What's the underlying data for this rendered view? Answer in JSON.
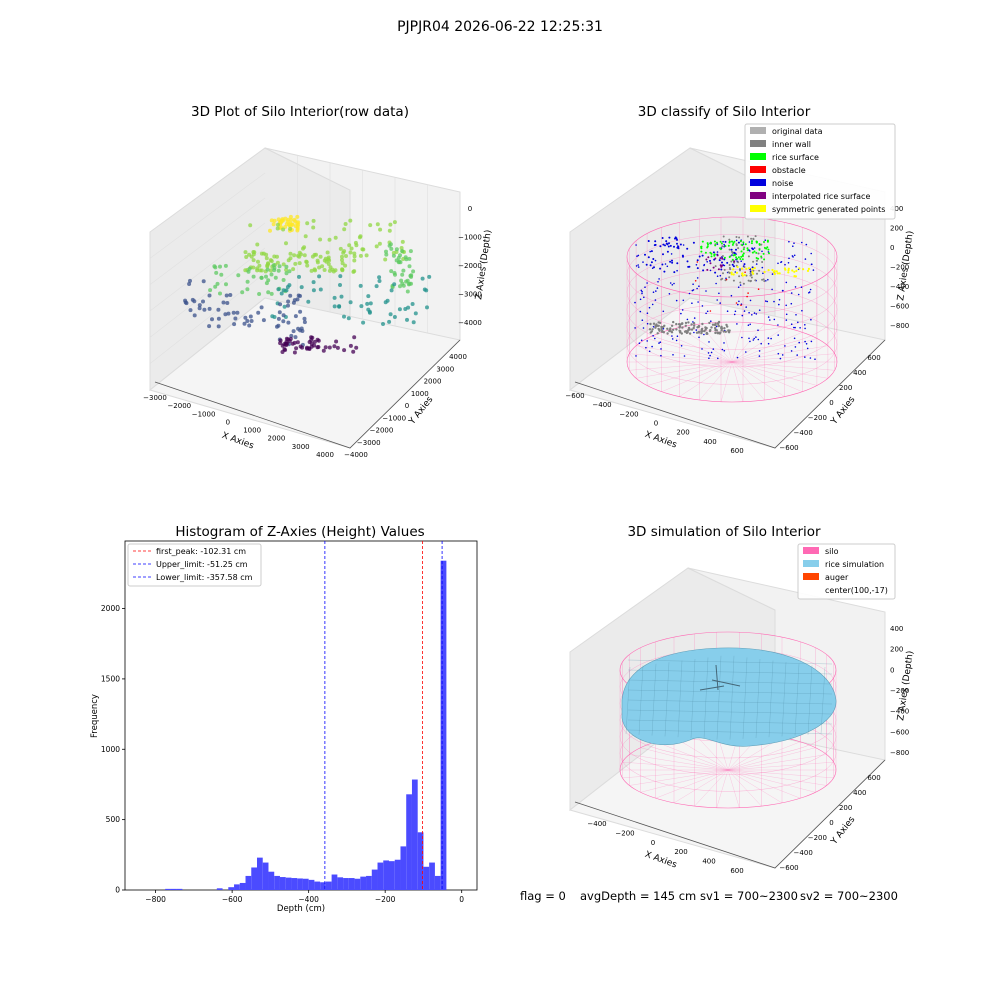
{
  "suptitle": "PJPJR04 2026-06-22 12:25:31",
  "footer": {
    "flag": "flag = 0",
    "avg": "avgDepth = 145 cm",
    "sv1": "sv1 = 700~2300",
    "sv2": "sv2 = 700~2300"
  },
  "colors": {
    "grey": "#b0b0b0",
    "inner_wall": "#808080",
    "rice_surface": "#00ff00",
    "obstacle": "#ff0000",
    "noise": "#0000dd",
    "interp": "#800080",
    "sym": "#ffff00",
    "silo": "#ff69b4",
    "rice_sim": "#87ceeb",
    "auger": "#ff4500",
    "hist": "#4b4bff"
  },
  "chart_data": [
    {
      "type": "scatter",
      "subtype": "3d",
      "title": "3D Plot of Silo Interior(row data)",
      "xlabel": "X Axies",
      "ylabel": "Y Axies",
      "zlabel": "Z Axies (Depth)",
      "xticks": [
        "−3000",
        "−2000",
        "−1000",
        "0",
        "1000",
        "2000",
        "3000",
        "4000"
      ],
      "yticks": [
        "4000",
        "3000",
        "2000",
        "1000",
        "0",
        "−1000",
        "−2000",
        "−3000",
        "−4000"
      ],
      "zticks": [
        "0",
        "−1000",
        "−2000",
        "−3000",
        "−4000"
      ],
      "xlim": [
        -3000,
        4000
      ],
      "ylim": [
        -4000,
        4000
      ],
      "zlim": [
        -4500,
        0
      ]
    },
    {
      "type": "scatter",
      "subtype": "3d",
      "title": "3D classify of Silo Interior",
      "xlabel": "X Axies",
      "ylabel": "Y Axies",
      "zlabel": "Z Axies (Depth)",
      "xticks": [
        "−600",
        "−400",
        "−200",
        "0",
        "200",
        "400",
        "600"
      ],
      "yticks": [
        "600",
        "400",
        "200",
        "0",
        "−200",
        "−400",
        "−600"
      ],
      "zticks": [
        "400",
        "200",
        "0",
        "−200",
        "−400",
        "−600",
        "−800"
      ],
      "legend_position": "top-right",
      "legend": [
        {
          "label": "original data",
          "color": "#b0b0b0"
        },
        {
          "label": "inner wall",
          "color": "#808080"
        },
        {
          "label": "rice surface",
          "color": "#00ff00"
        },
        {
          "label": "obstacle",
          "color": "#ff0000"
        },
        {
          "label": "noise",
          "color": "#0000dd"
        },
        {
          "label": "interpolated rice surface",
          "color": "#800080"
        },
        {
          "label": "symmetric generated points",
          "color": "#ffff00"
        }
      ]
    },
    {
      "type": "bar",
      "subtype": "histogram",
      "title": "Histogram of Z-Axies (Height) Values",
      "xlabel": "Depth (cm)",
      "ylabel": "Frequency",
      "xlim": [
        -880,
        40
      ],
      "ylim": [
        0,
        2480
      ],
      "xticks": [
        -800,
        -600,
        -400,
        -200,
        0
      ],
      "xtick_labels": [
        "−800",
        "−600",
        "−400",
        "−200",
        "0"
      ],
      "yticks": [
        0,
        500,
        1000,
        1500,
        2000
      ],
      "bin_width": 15,
      "bins": [
        [
          -775,
          8
        ],
        [
          -760,
          8
        ],
        [
          -745,
          8
        ],
        [
          -640,
          12
        ],
        [
          -610,
          20
        ],
        [
          -595,
          40
        ],
        [
          -580,
          50
        ],
        [
          -565,
          100
        ],
        [
          -550,
          160
        ],
        [
          -535,
          230
        ],
        [
          -520,
          195
        ],
        [
          -505,
          130
        ],
        [
          -490,
          100
        ],
        [
          -475,
          92
        ],
        [
          -460,
          88
        ],
        [
          -445,
          85
        ],
        [
          -430,
          82
        ],
        [
          -415,
          80
        ],
        [
          -400,
          72
        ],
        [
          -385,
          60
        ],
        [
          -370,
          55
        ],
        [
          -355,
          60
        ],
        [
          -340,
          110
        ],
        [
          -325,
          90
        ],
        [
          -310,
          85
        ],
        [
          -295,
          85
        ],
        [
          -280,
          80
        ],
        [
          -265,
          95
        ],
        [
          -250,
          100
        ],
        [
          -235,
          145
        ],
        [
          -220,
          195
        ],
        [
          -205,
          210
        ],
        [
          -190,
          205
        ],
        [
          -175,
          215
        ],
        [
          -160,
          310
        ],
        [
          -145,
          680
        ],
        [
          -130,
          785
        ],
        [
          -115,
          410
        ],
        [
          -100,
          165
        ],
        [
          -85,
          195
        ],
        [
          -70,
          100
        ],
        [
          -55,
          2340
        ]
      ],
      "lines": [
        {
          "label": "first_peak: -102.31 cm",
          "x": -102.31,
          "color": "#ff0000"
        },
        {
          "label": "Upper_limit: -51.25 cm",
          "x": -51.25,
          "color": "#0000ff"
        },
        {
          "label": "Lower_limit: -357.58 cm",
          "x": -357.58,
          "color": "#0000ff"
        }
      ],
      "legend_position": "top-left"
    },
    {
      "type": "scatter",
      "subtype": "3d-surface",
      "title": "3D simulation of Silo Interior",
      "xlabel": "X Axies",
      "ylabel": "Y Axies",
      "zlabel": "Z Axies (Depth)",
      "xticks": [
        "−400",
        "−200",
        "0",
        "200",
        "400",
        "600"
      ],
      "yticks": [
        "600",
        "400",
        "200",
        "0",
        "−200",
        "−400",
        "−600"
      ],
      "zticks": [
        "400",
        "200",
        "0",
        "−200",
        "−400",
        "−600",
        "−800"
      ],
      "legend_position": "top-right",
      "legend": [
        {
          "label": "silo",
          "color": "#ff69b4"
        },
        {
          "label": "rice simulation",
          "color": "#87ceeb"
        },
        {
          "label": "auger",
          "color": "#ff4500"
        },
        {
          "label": "center(100,-17)",
          "color": ""
        }
      ]
    }
  ]
}
